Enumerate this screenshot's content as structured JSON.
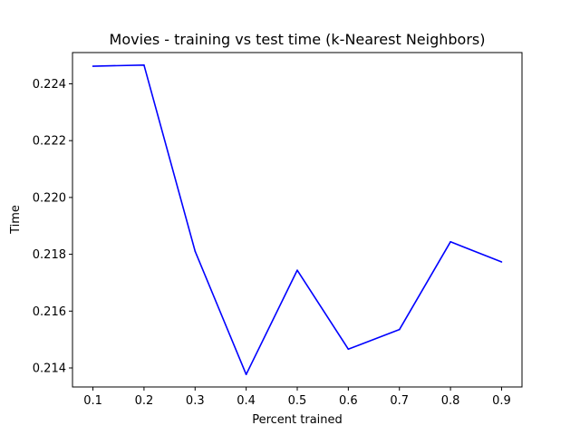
{
  "chart_data": {
    "type": "line",
    "title": "Movies - training vs test time (k-Nearest Neighbors)",
    "xlabel": "Percent trained",
    "ylabel": "Time",
    "x": [
      0.1,
      0.2,
      0.3,
      0.4,
      0.5,
      0.6,
      0.7,
      0.8,
      0.9
    ],
    "series": [
      {
        "color": "#0000ff",
        "values": [
          0.22462,
          0.22466,
          0.21811,
          0.21377,
          0.21744,
          0.21466,
          0.21535,
          0.21844,
          0.21773
        ]
      }
    ],
    "xlim": [
      0.06,
      0.94
    ],
    "ylim": [
      0.21333,
      0.2251
    ],
    "xticks": [
      "0.1",
      "0.2",
      "0.3",
      "0.4",
      "0.5",
      "0.6",
      "0.7",
      "0.8",
      "0.9"
    ],
    "yticks": [
      "0.214",
      "0.216",
      "0.218",
      "0.220",
      "0.222",
      "0.224"
    ],
    "grid": false,
    "legend": "none"
  }
}
